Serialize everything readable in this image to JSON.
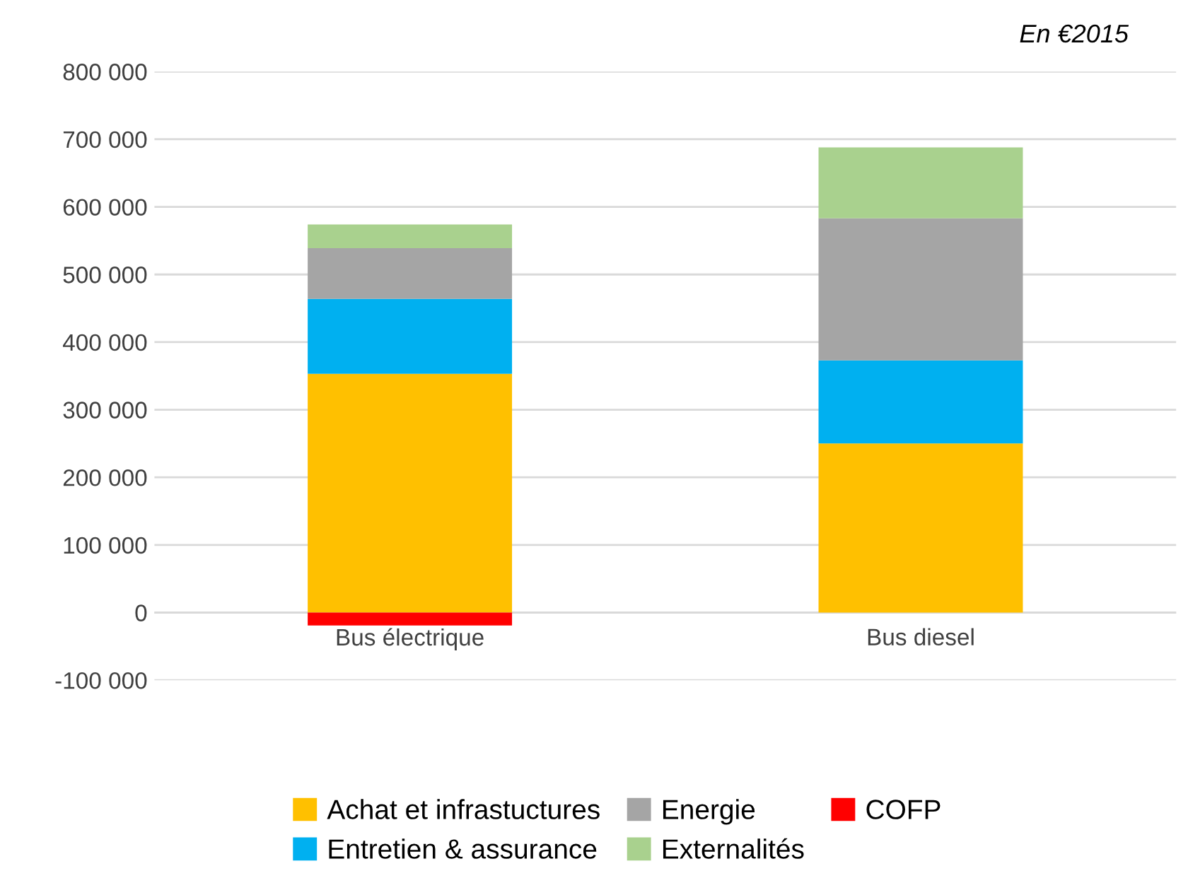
{
  "chart_data": {
    "type": "bar",
    "stacked": true,
    "subtitle": "En €2015",
    "categories": [
      "Bus électrique",
      "Bus diesel"
    ],
    "series": [
      {
        "name": "Achat et infrastuctures",
        "color": "#ffc000",
        "values": [
          353000,
          250000
        ]
      },
      {
        "name": "Entretien & assurance",
        "color": "#00b0f0",
        "values": [
          111000,
          123000
        ]
      },
      {
        "name": "Energie",
        "color": "#a5a5a5",
        "values": [
          75000,
          210000
        ]
      },
      {
        "name": "Externalités",
        "color": "#a9d18e",
        "values": [
          35000,
          105000
        ]
      },
      {
        "name": "COFP",
        "color": "#ff0000",
        "values": [
          -19000,
          null
        ]
      }
    ],
    "ylim": [
      -100000,
      800000
    ],
    "yticks": [
      {
        "value": -100000,
        "label": "-100 000"
      },
      {
        "value": 0,
        "label": "0"
      },
      {
        "value": 100000,
        "label": "100 000"
      },
      {
        "value": 200000,
        "label": "200 000"
      },
      {
        "value": 300000,
        "label": "300 000"
      },
      {
        "value": 400000,
        "label": "400 000"
      },
      {
        "value": 500000,
        "label": "500 000"
      },
      {
        "value": 600000,
        "label": "600 000"
      },
      {
        "value": 700000,
        "label": "700 000"
      },
      {
        "value": 800000,
        "label": "800 000"
      }
    ],
    "grid": "y",
    "legend": "bottom"
  }
}
